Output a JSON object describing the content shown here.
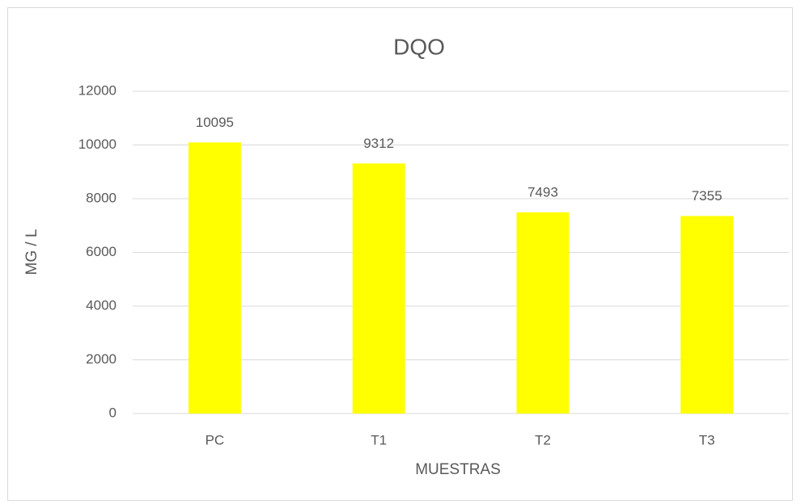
{
  "chart_data": {
    "type": "bar",
    "title": "DQO",
    "x_label": "MUESTRAS",
    "y_label": "MG / L",
    "categories": [
      "PC",
      "T1",
      "T2",
      "T3"
    ],
    "values": [
      10095,
      9312,
      7493,
      7355
    ],
    "color": "#ffff00",
    "ylim": [
      0,
      12000
    ],
    "yticks": [
      0,
      2000,
      4000,
      6000,
      8000,
      10000,
      12000
    ],
    "grid": true
  }
}
